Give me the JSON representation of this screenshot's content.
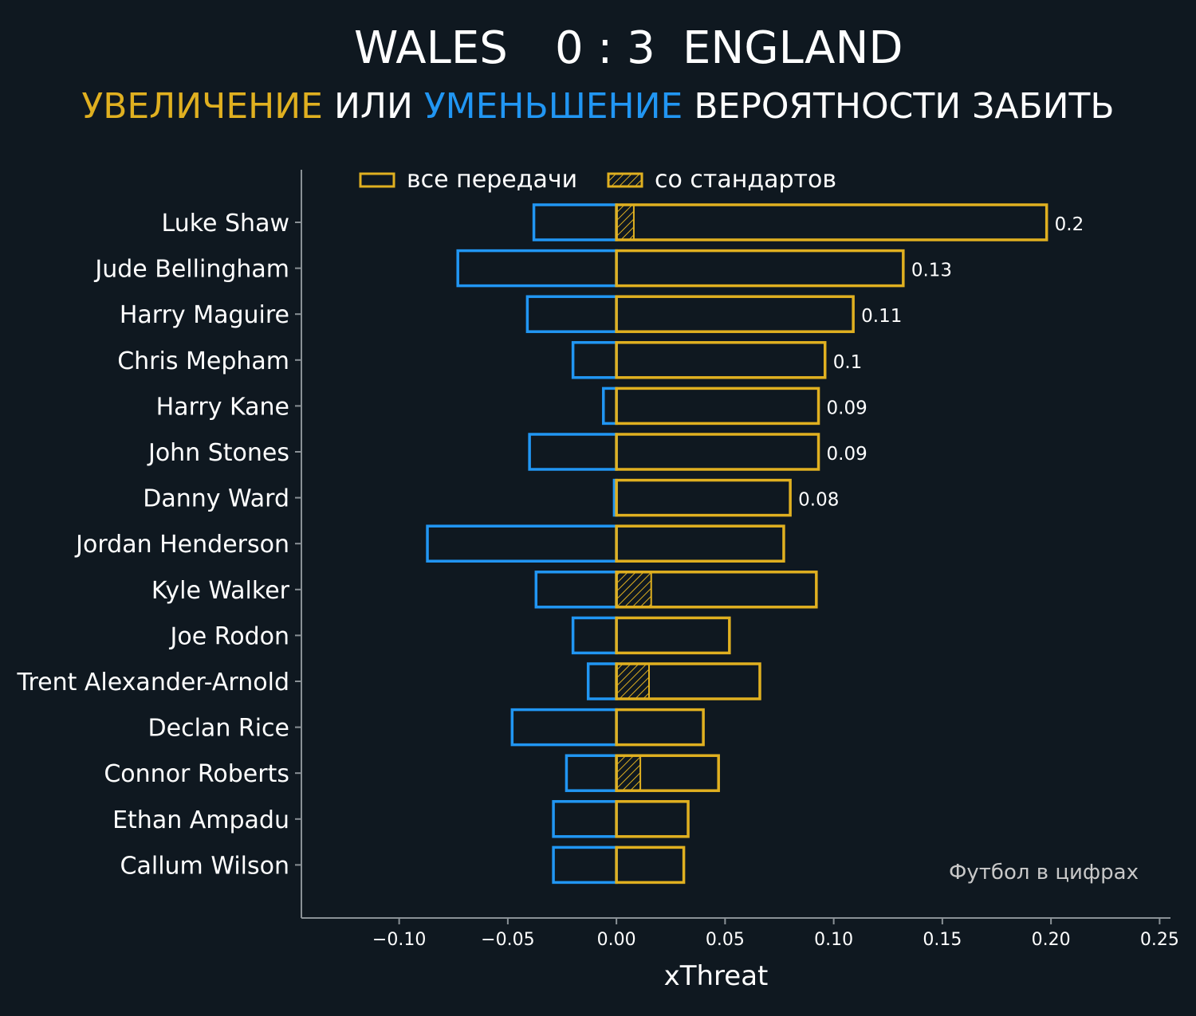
{
  "title": {
    "home_team": "WALES",
    "score": "0 : 3",
    "away_team": "ENGLAND"
  },
  "subtitle": {
    "part_increase": "УВЕЛИЧЕНИЕ",
    "part_or": " ИЛИ ",
    "part_decrease": "УМЕНЬШЕНИЕ",
    "part_rest": " ВЕРОЯТНОСТИ ЗАБИТЬ"
  },
  "credit": "Футбол в цифрах",
  "colors": {
    "background": "#0f1820",
    "positive": "#e0b020",
    "negative": "#2196f3",
    "axis": "#8a9196",
    "text": "#ffffff"
  },
  "chart_data": {
    "type": "bar",
    "orientation": "horizontal",
    "xlabel": "xThreat",
    "ylabel": "",
    "xlim": [
      -0.145,
      0.255
    ],
    "xticks": [
      -0.1,
      -0.05,
      0.0,
      0.05,
      0.1,
      0.15,
      0.2,
      0.25
    ],
    "xtick_labels": [
      "−0.10",
      "−0.05",
      "0.00",
      "0.05",
      "0.10",
      "0.15",
      "0.20",
      "0.25"
    ],
    "legend": {
      "position": "top",
      "entries": [
        {
          "label": "все передачи",
          "style": "outline"
        },
        {
          "label": "со стандартов",
          "style": "hatched"
        }
      ]
    },
    "players": [
      {
        "name": "Luke Shaw",
        "positive": 0.198,
        "negative": -0.038,
        "set_piece": 0.008,
        "label": "0.2"
      },
      {
        "name": "Jude Bellingham",
        "positive": 0.132,
        "negative": -0.073,
        "set_piece": 0.0,
        "label": "0.13"
      },
      {
        "name": "Harry Maguire",
        "positive": 0.109,
        "negative": -0.041,
        "set_piece": 0.0,
        "label": "0.11"
      },
      {
        "name": "Chris Mepham",
        "positive": 0.096,
        "negative": -0.02,
        "set_piece": 0.0,
        "label": "0.1"
      },
      {
        "name": "Harry Kane",
        "positive": 0.093,
        "negative": -0.006,
        "set_piece": 0.0,
        "label": "0.09"
      },
      {
        "name": "John Stones",
        "positive": 0.093,
        "negative": -0.04,
        "set_piece": 0.0,
        "label": "0.09"
      },
      {
        "name": "Danny Ward",
        "positive": 0.08,
        "negative": -0.001,
        "set_piece": 0.0,
        "label": "0.08"
      },
      {
        "name": "Jordan Henderson",
        "positive": 0.077,
        "negative": -0.087,
        "set_piece": 0.0,
        "label": ""
      },
      {
        "name": "Kyle Walker",
        "positive": 0.092,
        "negative": -0.037,
        "set_piece": 0.016,
        "label": ""
      },
      {
        "name": "Joe Rodon",
        "positive": 0.052,
        "negative": -0.02,
        "set_piece": 0.0,
        "label": ""
      },
      {
        "name": "Trent Alexander-Arnold",
        "positive": 0.066,
        "negative": -0.013,
        "set_piece": 0.015,
        "label": ""
      },
      {
        "name": "Declan Rice",
        "positive": 0.04,
        "negative": -0.048,
        "set_piece": 0.0,
        "label": ""
      },
      {
        "name": "Connor Roberts",
        "positive": 0.047,
        "negative": -0.023,
        "set_piece": 0.011,
        "label": ""
      },
      {
        "name": "Ethan Ampadu",
        "positive": 0.033,
        "negative": -0.029,
        "set_piece": 0.0,
        "label": ""
      },
      {
        "name": "Callum Wilson",
        "positive": 0.031,
        "negative": -0.029,
        "set_piece": 0.0,
        "label": ""
      }
    ]
  }
}
